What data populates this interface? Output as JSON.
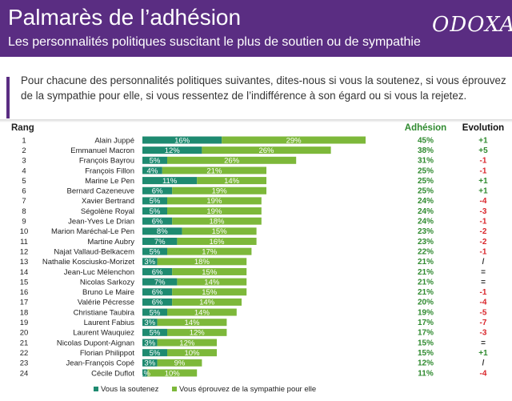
{
  "header": {
    "title": "Palmarès de l’adhésion",
    "subtitle": "Les personnalités politiques suscitant le plus de soutien ou de sympathie",
    "logo": "ODOXA"
  },
  "question": "Pour chacune des personnalités politiques suivantes, dites-nous si vous la soutenez, si vous éprouvez de la sympathie pour elle, si vous ressentez de l’indifférence à son égard ou si vous la rejetez.",
  "columns": {
    "rank": "Rang",
    "adhesion": "Adhésion",
    "evolution": "Evolution"
  },
  "colors": {
    "header": "#5a2d82",
    "soutien": "#1e8a70",
    "sympathie": "#7db83a",
    "positive": "#2f8a2f",
    "negative": "#d9262b",
    "neutral": "#333333"
  },
  "chart_data": {
    "type": "bar",
    "orientation": "horizontal",
    "stacked": true,
    "categories": [
      "Alain Juppé",
      "Emmanuel Macron",
      "François Bayrou",
      "François Fillon",
      "Marine Le Pen",
      "Bernard Cazeneuve",
      "Xavier Bertrand",
      "Ségolène Royal",
      "Jean-Yves Le Drian",
      "Marion Maréchal-Le Pen",
      "Martine Aubry",
      "Najat Vallaud-Belkacem",
      "Nathalie Kosciusko-Morizet",
      "Jean-Luc Mélenchon",
      "Nicolas Sarkozy",
      "Bruno Le Maire",
      "Valérie Pécresse",
      "Christiane Taubira",
      "Laurent Fabius",
      "Laurent Wauquiez",
      "Nicolas Dupont-Aignan",
      "Florian Philippot",
      "Jean-François Copé",
      "Cécile Duflot"
    ],
    "ranks": [
      1,
      2,
      3,
      4,
      5,
      6,
      7,
      8,
      9,
      10,
      11,
      12,
      13,
      14,
      15,
      16,
      17,
      18,
      19,
      20,
      21,
      22,
      23,
      24
    ],
    "series": [
      {
        "name": "Vous la soutenez",
        "values": [
          16,
          12,
          5,
          4,
          11,
          6,
          5,
          5,
          6,
          8,
          7,
          5,
          3,
          6,
          7,
          6,
          6,
          5,
          3,
          5,
          3,
          5,
          3,
          1
        ]
      },
      {
        "name": "Vous éprouvez de la sympathie pour elle",
        "values": [
          29,
          26,
          26,
          21,
          14,
          19,
          19,
          19,
          18,
          15,
          16,
          17,
          18,
          15,
          14,
          15,
          14,
          14,
          14,
          12,
          12,
          10,
          9,
          10
        ]
      }
    ],
    "series_labels": [
      [
        "16%",
        "12%",
        "5%",
        "4%",
        "11%",
        "6%",
        "5%",
        "5%",
        "6%",
        "8%",
        "7%",
        "5%",
        "3%",
        "6%",
        "7%",
        "6%",
        "6%",
        "5%",
        "3%",
        "5%",
        "3%",
        "5%",
        "3%",
        "1%"
      ],
      [
        "29%",
        "26%",
        "26%",
        "21%",
        "14%",
        "19%",
        "19%",
        "19%",
        "18%",
        "15%",
        "16%",
        "17%",
        "18%",
        "15%",
        "14%",
        "15%",
        "14%",
        "14%",
        "14%",
        "12%",
        "12%",
        "10%",
        "9%",
        "10%"
      ]
    ],
    "adhesion": [
      "45%",
      "38%",
      "31%",
      "25%",
      "25%",
      "25%",
      "24%",
      "24%",
      "24%",
      "23%",
      "23%",
      "22%",
      "21%",
      "21%",
      "21%",
      "21%",
      "20%",
      "19%",
      "17%",
      "17%",
      "15%",
      "15%",
      "12%",
      "11%"
    ],
    "evolution": [
      "+1",
      "+5",
      "-1",
      "-1",
      "+1",
      "+1",
      "-4",
      "-3",
      "-1",
      "-2",
      "-2",
      "-1",
      "/",
      "=",
      "=",
      "-1",
      "-4",
      "-5",
      "-7",
      "-3",
      "=",
      "+1",
      "/",
      "-4"
    ],
    "legend_position": "bottom"
  }
}
